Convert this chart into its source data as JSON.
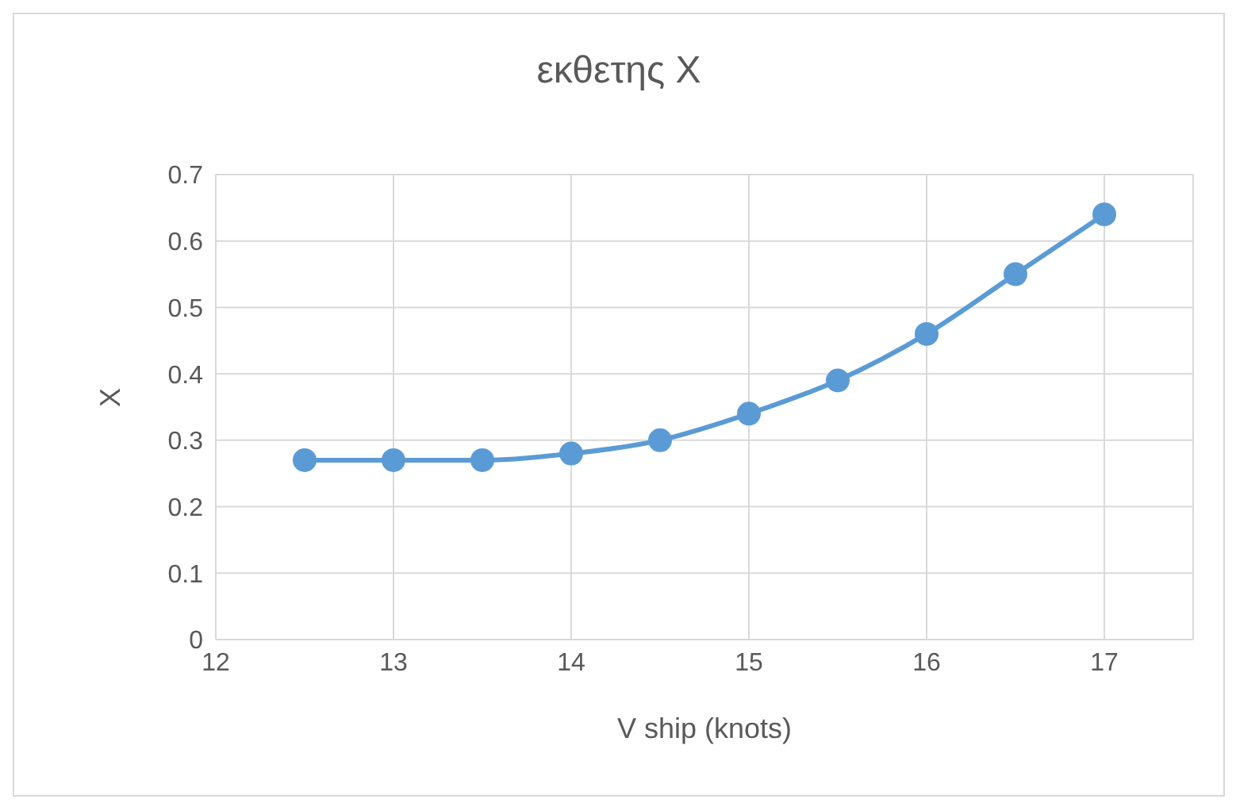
{
  "chart_data": {
    "type": "line",
    "title": "εκθετης X",
    "xlabel": "V ship (knots)",
    "ylabel": "X",
    "x": [
      12.5,
      13,
      13.5,
      14,
      14.5,
      15,
      15.5,
      16,
      16.5,
      17
    ],
    "series": [
      {
        "color": "#5b9bd5",
        "values": [
          0.27,
          0.27,
          0.27,
          0.28,
          0.3,
          0.34,
          0.39,
          0.46,
          0.55,
          0.64
        ]
      }
    ],
    "xlim": [
      12,
      17.5
    ],
    "xticks": [
      12,
      13,
      14,
      15,
      16,
      17
    ],
    "ylim": [
      0,
      0.7
    ],
    "yticks": [
      0,
      0.1,
      0.2,
      0.3,
      0.4,
      0.5,
      0.6,
      0.7
    ],
    "grid": true,
    "marker": "circle",
    "line_style": "solid",
    "legend": false
  }
}
